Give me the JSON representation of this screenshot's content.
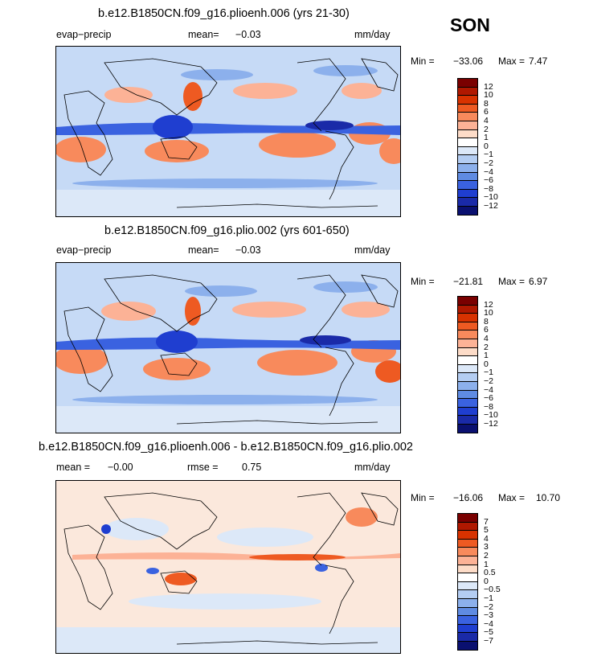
{
  "season": "SON",
  "panels": [
    {
      "title": "b.e12.B1850CN.f09_g16.plioenh.006 (yrs 21-30)",
      "left_label": "evap−precip",
      "mean_label": "mean=",
      "mean_value": "−0.03",
      "units": "mm/day",
      "min_label": "Min =",
      "min_value": "−33.06",
      "max_label": "Max =",
      "max_value": "7.47",
      "colorbar_labels": [
        "12",
        "10",
        "8",
        "6",
        "4",
        "2",
        "1",
        "0",
        "−1",
        "−2",
        "−4",
        "−6",
        "−8",
        "−10",
        "−12"
      ]
    },
    {
      "title": "b.e12.B1850CN.f09_g16.plio.002 (yrs 601-650)",
      "left_label": "evap−precip",
      "mean_label": "mean=",
      "mean_value": "−0.03",
      "units": "mm/day",
      "min_label": "Min =",
      "min_value": "−21.81",
      "max_label": "Max =",
      "max_value": "6.97",
      "colorbar_labels": [
        "12",
        "10",
        "8",
        "6",
        "4",
        "2",
        "1",
        "0",
        "−1",
        "−2",
        "−4",
        "−6",
        "−8",
        "−10",
        "−12"
      ]
    },
    {
      "title": "b.e12.B1850CN.f09_g16.plioenh.006 - b.e12.B1850CN.f09_g16.plio.002",
      "mean_label": "mean =",
      "mean_value": "−0.00",
      "rmse_label": "rmse =",
      "rmse_value": "0.75",
      "units": "mm/day",
      "min_label": "Min =",
      "min_value": "−16.06",
      "max_label": "Max =",
      "max_value": "10.70",
      "colorbar_labels": [
        "7",
        "5",
        "4",
        "3",
        "2",
        "1",
        "0.5",
        "0",
        "−0.5",
        "−1",
        "−2",
        "−3",
        "−4",
        "−5",
        "−7"
      ]
    }
  ],
  "colors": {
    "colorbar_cells": [
      "#7a0000",
      "#b01800",
      "#d83200",
      "#ee5a22",
      "#f88a5c",
      "#fcb296",
      "#fddcc8",
      "#ffffff",
      "#dce8f8",
      "#b4cdf2",
      "#8cb0ec",
      "#5f8be2",
      "#3a62e0",
      "#1f3ed0",
      "#1a2aa8",
      "#0a1070"
    ],
    "ocean_base": "#c6daf6",
    "diff_base": "#fbe8dc"
  },
  "chart_data": [
    {
      "type": "heatmap",
      "title": "b.e12.B1850CN.f09_g16.plioenh.006 (yrs 21-30)",
      "variable": "evap−precip",
      "units": "mm/day",
      "season": "SON",
      "mean": -0.03,
      "min": -33.06,
      "max": 7.47,
      "contour_levels": [
        -12,
        -10,
        -8,
        -6,
        -4,
        -2,
        -1,
        0,
        1,
        2,
        4,
        6,
        8,
        10,
        12
      ]
    },
    {
      "type": "heatmap",
      "title": "b.e12.B1850CN.f09_g16.plio.002 (yrs 601-650)",
      "variable": "evap−precip",
      "units": "mm/day",
      "season": "SON",
      "mean": -0.03,
      "min": -21.81,
      "max": 6.97,
      "contour_levels": [
        -12,
        -10,
        -8,
        -6,
        -4,
        -2,
        -1,
        0,
        1,
        2,
        4,
        6,
        8,
        10,
        12
      ]
    },
    {
      "type": "heatmap",
      "title": "b.e12.B1850CN.f09_g16.plioenh.006 - b.e12.B1850CN.f09_g16.plio.002",
      "units": "mm/day",
      "season": "SON",
      "mean": -0.0,
      "rmse": 0.75,
      "min": -16.06,
      "max": 10.7,
      "contour_levels": [
        -7,
        -5,
        -4,
        -3,
        -2,
        -1,
        -0.5,
        0,
        0.5,
        1,
        2,
        3,
        4,
        5,
        7
      ]
    }
  ]
}
